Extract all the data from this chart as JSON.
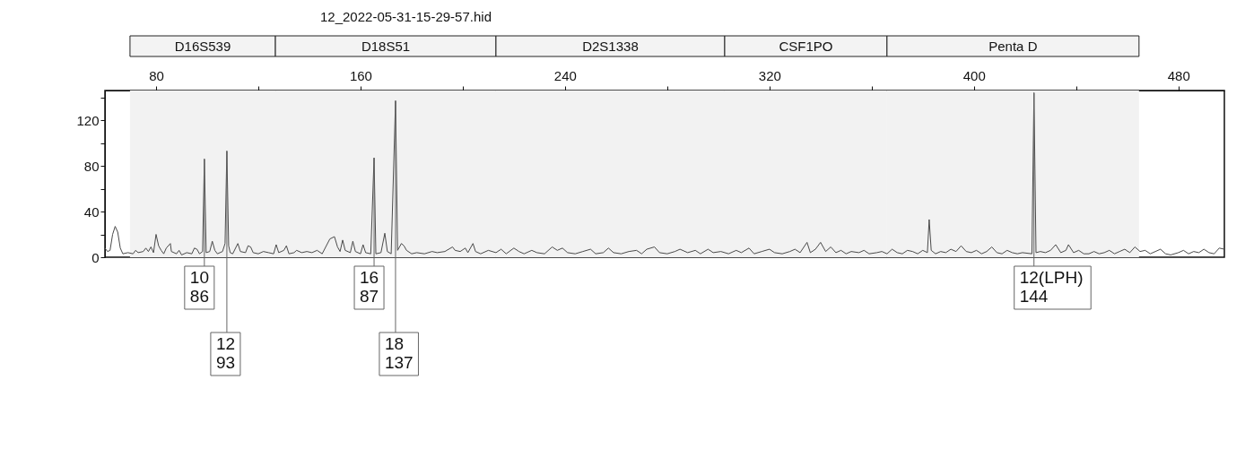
{
  "chart_data": {
    "type": "line",
    "title": "12_2022-05-31-15-29-57.hid",
    "x": [
      60,
      61,
      62,
      63,
      64,
      65,
      66,
      67,
      69,
      71,
      72,
      73,
      75,
      76,
      77,
      78,
      79,
      80,
      81,
      82,
      83,
      84,
      85.6,
      86,
      88,
      89,
      90,
      92,
      94,
      95,
      96,
      97,
      98.2,
      98.9,
      99.6,
      101,
      102,
      103,
      104,
      106,
      107,
      107.7,
      108.4,
      109,
      110,
      112,
      113,
      115,
      116,
      117,
      118,
      120,
      122,
      124,
      126,
      127,
      128,
      130,
      131,
      132,
      134,
      135,
      137,
      139,
      141,
      143,
      145,
      148,
      149.8,
      151,
      152,
      153,
      154,
      156,
      157,
      158,
      160,
      161,
      162,
      164,
      165.3,
      166,
      168,
      169.5,
      170.5,
      172,
      173.7,
      174.5,
      176,
      177,
      178,
      180,
      182,
      185,
      188,
      190,
      193,
      196,
      197,
      199,
      201,
      202,
      204,
      205,
      207,
      210,
      213,
      215,
      217,
      220,
      222,
      224,
      227,
      229,
      232,
      235,
      237,
      239,
      241,
      244,
      247,
      250,
      252,
      255,
      257,
      259,
      262,
      265,
      268,
      270,
      272,
      275,
      277,
      280,
      283,
      285,
      288,
      291,
      293,
      296,
      298,
      301,
      304,
      307,
      309,
      312,
      314,
      317,
      320,
      322,
      325,
      328,
      330,
      332,
      334.7,
      336,
      338,
      340,
      342,
      344,
      346,
      348,
      350,
      352,
      355,
      357,
      359,
      362,
      364,
      366,
      368,
      370,
      372,
      374,
      376,
      378,
      380,
      381.8,
      382.5,
      383.3,
      385,
      387,
      389,
      391,
      393,
      395,
      397,
      399,
      401,
      403,
      405,
      407,
      409,
      411,
      413,
      415,
      417,
      419,
      422.7,
      423.5,
      424.3,
      426,
      428,
      430,
      432,
      434,
      436,
      437,
      439,
      441,
      443,
      445,
      447,
      449,
      451,
      453,
      455,
      457,
      459,
      461,
      463,
      465,
      467,
      469,
      471,
      473,
      475,
      477,
      480,
      482,
      484,
      486,
      488,
      490,
      492,
      494,
      496,
      498
    ],
    "series": [
      {
        "color": "#4a4a4a",
        "values": [
          8,
          5,
          6,
          20,
          27,
          22,
          8,
          3,
          4,
          3,
          6,
          4,
          5,
          8,
          5,
          9,
          4,
          20,
          10,
          6,
          3,
          8,
          12,
          5,
          3,
          6,
          2,
          4,
          3,
          8,
          7,
          3,
          5,
          86,
          4,
          5,
          14,
          6,
          3,
          5,
          12,
          93,
          10,
          4,
          3,
          12,
          5,
          4,
          10,
          9,
          4,
          3,
          5,
          4,
          3,
          11,
          4,
          6,
          10,
          3,
          4,
          6,
          4,
          5,
          4,
          6,
          3,
          16,
          18,
          9,
          5,
          15,
          6,
          4,
          14,
          5,
          3,
          11,
          4,
          3,
          87,
          3,
          4,
          21,
          5,
          3,
          137,
          6,
          12,
          10,
          6,
          3,
          4,
          3,
          5,
          4,
          5,
          9,
          6,
          5,
          8,
          4,
          12,
          5,
          3,
          6,
          4,
          7,
          3,
          8,
          5,
          3,
          6,
          4,
          3,
          9,
          6,
          8,
          4,
          3,
          5,
          7,
          3,
          4,
          8,
          4,
          3,
          5,
          6,
          3,
          7,
          9,
          4,
          3,
          5,
          7,
          4,
          6,
          3,
          7,
          4,
          5,
          3,
          6,
          4,
          8,
          3,
          5,
          7,
          4,
          3,
          5,
          7,
          4,
          13,
          4,
          7,
          13,
          5,
          9,
          4,
          6,
          3,
          5,
          4,
          6,
          3,
          4,
          5,
          3,
          7,
          4,
          3,
          6,
          5,
          3,
          6,
          4,
          33,
          6,
          3,
          5,
          4,
          7,
          5,
          10,
          5,
          4,
          6,
          3,
          5,
          9,
          4,
          3,
          6,
          4,
          3,
          4,
          3,
          144,
          4,
          5,
          4,
          6,
          11,
          4,
          6,
          11,
          4,
          6,
          3,
          3,
          5,
          3,
          4,
          6,
          3,
          5,
          7,
          4,
          9,
          5,
          6,
          3,
          5,
          7,
          3,
          2,
          4,
          6,
          3,
          5,
          4,
          7,
          4,
          3,
          8,
          7
        ]
      }
    ],
    "xlim": [
      60,
      498
    ],
    "ylim": [
      0,
      146
    ],
    "xticks": [
      80,
      {
        "value": 120,
        "label": null
      },
      160,
      {
        "value": 200,
        "label": null
      },
      240,
      {
        "value": 280,
        "label": null
      },
      320,
      {
        "value": 360,
        "label": null
      },
      400,
      {
        "value": 440,
        "label": null
      },
      480
    ],
    "yticks": [
      0,
      {
        "value": 20,
        "label": null
      },
      40,
      {
        "value": 60,
        "label": null
      },
      80,
      {
        "value": 100,
        "label": null
      },
      120,
      {
        "value": 140,
        "label": null
      }
    ],
    "bands": [
      {
        "axis": "x",
        "from": 69.8,
        "to": 126.7,
        "label": "D16S539"
      },
      {
        "axis": "x",
        "from": 126.7,
        "to": 213,
        "label": "D18S51"
      },
      {
        "axis": "x",
        "from": 213,
        "to": 302.5,
        "label": "D2S1338"
      },
      {
        "axis": "x",
        "from": 302.5,
        "to": 366,
        "label": "CSF1PO"
      },
      {
        "axis": "x",
        "from": 366,
        "to": 464.6,
        "label": "Penta D"
      }
    ],
    "annotations": [
      {
        "text": "10\n86",
        "x": 98.9,
        "y": 86
      },
      {
        "text": "12\n93",
        "x": 107.7,
        "y": 93
      },
      {
        "text": "16\n87",
        "x": 165.3,
        "y": 87
      },
      {
        "text": "18\n137",
        "x": 173.7,
        "y": 137
      },
      {
        "text": "12(LPH)\n144",
        "x": 423.5,
        "y": 144
      }
    ]
  }
}
